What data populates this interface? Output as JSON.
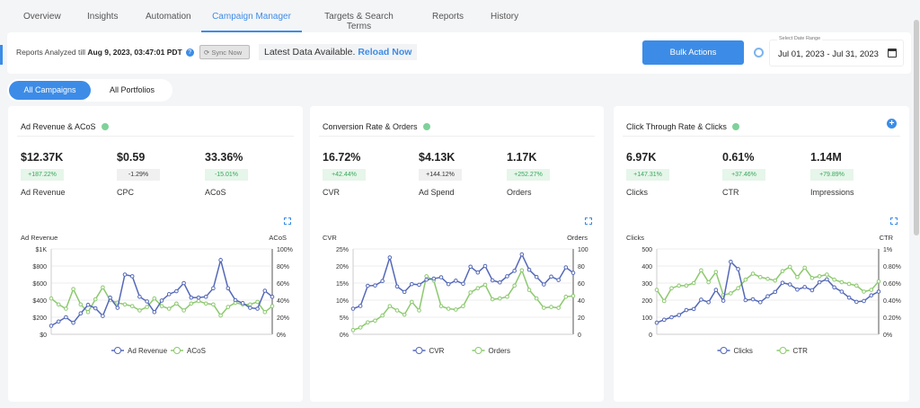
{
  "tabs": [
    "Overview",
    "Insights",
    "Automation",
    "Campaign Manager",
    "Targets & Search Terms",
    "Reports",
    "History"
  ],
  "active_tab": "Campaign Manager",
  "header": {
    "reports_prefix": "Reports Analyzed till",
    "reports_time": "Aug 9, 2023, 03:47:01 PDT",
    "sync_label": "Sync Now",
    "latest_text": "Latest Data Available.",
    "reload_label": "Reload Now",
    "bulk_label": "Bulk Actions",
    "date_label": "Select Date Range",
    "date_value": "Jul 01, 2023 - Jul 31, 2023"
  },
  "pills": {
    "all_campaigns": "All Campaigns",
    "all_portfolios": "All Portfolios"
  },
  "colors": {
    "accent": "#3c8ce7",
    "series1": "#5468b8",
    "series2": "#8cc96e"
  },
  "cards": [
    {
      "title": "Ad Revenue & ACoS",
      "metrics": [
        {
          "value": "$12.37K",
          "delta": "+187.22%",
          "tone": "pos",
          "name": "Ad Revenue"
        },
        {
          "value": "$0.59",
          "delta": "-1.29%",
          "tone": "neu",
          "name": "CPC"
        },
        {
          "value": "33.36%",
          "delta": "-15.01%",
          "tone": "pos",
          "name": "ACoS"
        }
      ]
    },
    {
      "title": "Conversion Rate & Orders",
      "metrics": [
        {
          "value": "16.72%",
          "delta": "+42.44%",
          "tone": "pos",
          "name": "CVR"
        },
        {
          "value": "$4.13K",
          "delta": "+144.12%",
          "tone": "neu",
          "name": "Ad Spend"
        },
        {
          "value": "1.17K",
          "delta": "+252.27%",
          "tone": "pos",
          "name": "Orders"
        }
      ]
    },
    {
      "title": "Click Through Rate & Clicks",
      "metrics": [
        {
          "value": "6.97K",
          "delta": "+147.31%",
          "tone": "pos",
          "name": "Clicks"
        },
        {
          "value": "0.61%",
          "delta": "+37.46%",
          "tone": "pos",
          "name": "CTR"
        },
        {
          "value": "1.14M",
          "delta": "+79.89%",
          "tone": "pos",
          "name": "Impressions"
        }
      ]
    }
  ],
  "chart_data": [
    {
      "type": "line",
      "ylabel_left": "Ad Revenue",
      "ylabel_right": "ACoS",
      "left_ticks": [
        "$0",
        "$200",
        "$400",
        "$600",
        "$800",
        "$1K"
      ],
      "right_ticks": [
        "0%",
        "20%",
        "40%",
        "60%",
        "80%",
        "100%"
      ],
      "ylim_left": [
        0,
        1000
      ],
      "ylim_right": [
        0,
        100
      ],
      "legend": "bottom",
      "series": [
        {
          "name": "Ad Revenue",
          "axis": "left",
          "values": [
            100,
            150,
            200,
            135,
            245,
            345,
            305,
            215,
            430,
            310,
            700,
            680,
            440,
            385,
            260,
            395,
            470,
            505,
            600,
            430,
            430,
            440,
            540,
            870,
            540,
            400,
            365,
            310,
            300,
            510,
            440
          ]
        },
        {
          "name": "ACoS",
          "axis": "right",
          "values": [
            42,
            35,
            30,
            53,
            35,
            26,
            41,
            55,
            40,
            37,
            35,
            33,
            28,
            32,
            42,
            33,
            30,
            36,
            28,
            36,
            39,
            36,
            35,
            22,
            32,
            37,
            35,
            35,
            38,
            26,
            33
          ]
        }
      ]
    },
    {
      "type": "line",
      "ylabel_left": "CVR",
      "ylabel_right": "Orders",
      "left_ticks": [
        "0%",
        "5%",
        "10%",
        "15%",
        "20%",
        "25%"
      ],
      "right_ticks": [
        "0",
        "20",
        "40",
        "60",
        "80",
        "100"
      ],
      "ylim_left": [
        0,
        25
      ],
      "ylim_right": [
        0,
        100
      ],
      "legend": "bottom",
      "series": [
        {
          "name": "CVR",
          "axis": "left",
          "values": [
            7.5,
            8.3,
            14.2,
            14.3,
            15.6,
            22.5,
            14.0,
            12.4,
            14.7,
            14.5,
            16.0,
            16.3,
            16.7,
            14.7,
            15.7,
            14.8,
            19.8,
            18.1,
            20.0,
            15.8,
            15.2,
            17.0,
            18.6,
            23.4,
            18.9,
            16.8,
            14.6,
            16.9,
            15.9,
            19.6,
            18.0
          ]
        },
        {
          "name": "Orders",
          "axis": "right",
          "values": [
            5,
            8,
            14,
            16,
            22,
            33,
            28,
            23,
            38,
            28,
            68,
            63,
            33,
            30,
            29,
            33,
            49,
            54,
            58,
            41,
            42,
            44,
            57,
            75,
            52,
            42,
            31,
            32,
            31,
            44,
            45
          ]
        }
      ]
    },
    {
      "type": "line",
      "ylabel_left": "Clicks",
      "ylabel_right": "CTR",
      "left_ticks": [
        "0",
        "100",
        "200",
        "300",
        "400",
        "500"
      ],
      "right_ticks": [
        "0%",
        "0.20%",
        "0.40%",
        "0.60%",
        "0.80%",
        "1%"
      ],
      "ylim_left": [
        0,
        500
      ],
      "ylim_right": [
        0,
        1
      ],
      "legend": "bottom",
      "series": [
        {
          "name": "Clicks",
          "axis": "left",
          "values": [
            68,
            85,
            100,
            113,
            142,
            148,
            203,
            188,
            260,
            197,
            425,
            382,
            200,
            205,
            188,
            223,
            248,
            302,
            292,
            262,
            277,
            258,
            305,
            322,
            275,
            250,
            215,
            190,
            195,
            228,
            250
          ]
        },
        {
          "name": "CTR",
          "axis": "right",
          "values": [
            0.52,
            0.39,
            0.54,
            0.57,
            0.57,
            0.6,
            0.75,
            0.61,
            0.73,
            0.46,
            0.48,
            0.54,
            0.64,
            0.71,
            0.67,
            0.65,
            0.63,
            0.74,
            0.79,
            0.67,
            0.78,
            0.66,
            0.68,
            0.7,
            0.64,
            0.61,
            0.59,
            0.57,
            0.5,
            0.52,
            0.62
          ]
        }
      ]
    }
  ]
}
